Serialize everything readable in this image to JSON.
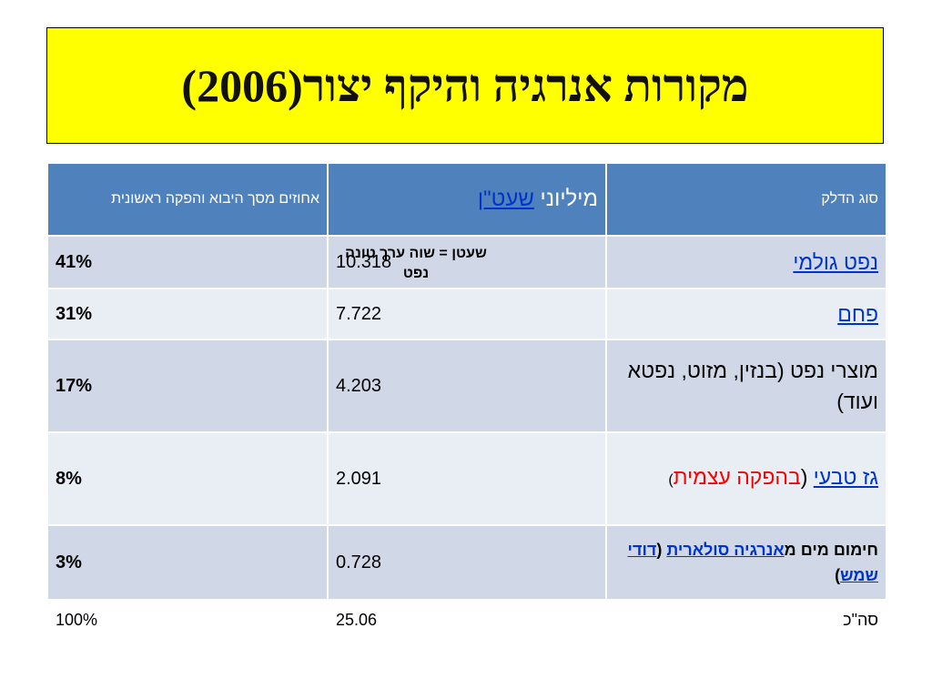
{
  "title": "מקורות אנרגיה והיקף יצור(2006)",
  "headers": {
    "fuel": "סוג הדלק",
    "millions_prefix": "מיליוני ",
    "millions_link": "שעט\"ן",
    "percent": "אחוזים מסך היבוא והפקה ראשונית"
  },
  "note": "שעטן = שוה ערך טונה נפט",
  "rows": [
    {
      "fuel_link": "נפט גולמי",
      "value": "10.318",
      "percent": "41%"
    },
    {
      "fuel": "פחם",
      "value": "7.722",
      "percent": "31%"
    },
    {
      "fuel": "מוצרי נפט (בנזין, מזוט, נפטא ועוד)",
      "value": "4.203",
      "percent": "17%"
    },
    {
      "fuel_link": "גז טבעי",
      "fuel_open": " (",
      "fuel_red": "בהפקה עצמית",
      "fuel_close": ")",
      "value": "2.091",
      "percent": "8%"
    },
    {
      "fuel_part1": "חימום מים מ",
      "fuel_link1": "אנרגיה סולארית",
      "fuel_open": " (",
      "fuel_link2": "דודי שמש",
      "fuel_close": ")",
      "value": "0.728",
      "percent": "3%"
    }
  ],
  "total": {
    "label": "סה\"כ",
    "value": "25.06",
    "percent": "100%"
  },
  "colors": {
    "title_bg": "#ffff00",
    "header_bg": "#4f81bd",
    "row_dark": "#d0d8e8",
    "row_light": "#e9edf4",
    "link": "#0033cc",
    "red": "#ff0000"
  }
}
